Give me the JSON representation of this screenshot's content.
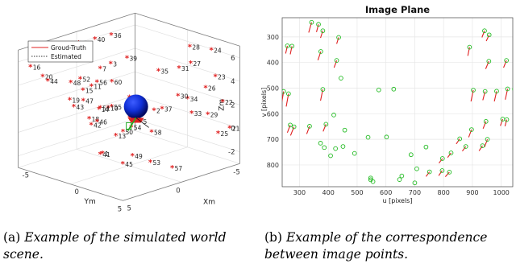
{
  "chart_data": [
    {
      "type": "scatter",
      "projection": "3d",
      "title": "",
      "xlabel": "Xm",
      "ylabel": "Ym",
      "zlabel": "Zm",
      "xlim": [
        -5,
        5
      ],
      "ylim": [
        -5,
        5
      ],
      "zlim": [
        -3,
        7
      ],
      "x_ticks": [
        "-5",
        "0",
        "5"
      ],
      "y_ticks": [
        "-5",
        "0",
        "5"
      ],
      "z_ticks": [
        "-2",
        "0",
        "2",
        "4",
        "6"
      ],
      "grid": true,
      "legend": {
        "position": "top-left",
        "entries": [
          {
            "label": "Groud-Truth",
            "color": "#e02020",
            "style": "solid"
          },
          {
            "label": "Estimated",
            "color": "#333333",
            "style": "dotted"
          }
        ]
      },
      "points": [
        {
          "label": "36",
          "x": -2.7,
          "y": -4.7,
          "z": 5.9
        },
        {
          "label": "40",
          "x": -1.3,
          "y": -4.7,
          "z": 6.0
        },
        {
          "label": "4",
          "x": 0.1,
          "y": -4.7,
          "z": 6.1
        },
        {
          "label": "8",
          "x": 1.7,
          "y": -4.6,
          "z": 6.0
        },
        {
          "label": "12",
          "x": 3.1,
          "y": -4.6,
          "z": 5.8
        },
        {
          "label": "16",
          "x": 4.4,
          "y": -4.5,
          "z": 5.5
        },
        {
          "label": "20",
          "x": 4.7,
          "y": -3.0,
          "z": 5.2
        },
        {
          "label": "44",
          "x": 4.8,
          "y": -2.4,
          "z": 5.0
        },
        {
          "label": "24",
          "x": -4.8,
          "y": 2.5,
          "z": 6.0
        },
        {
          "label": "28",
          "x": -4.3,
          "y": 1.0,
          "z": 6.0
        },
        {
          "label": "39",
          "x": -0.9,
          "y": -1.2,
          "z": 5.5
        },
        {
          "label": "3",
          "x": 0.4,
          "y": -1.3,
          "z": 5.4
        },
        {
          "label": "7",
          "x": 1.3,
          "y": -1.3,
          "z": 5.3
        },
        {
          "label": "52",
          "x": 3.1,
          "y": -1.2,
          "z": 5.0
        },
        {
          "label": "48",
          "x": 4.0,
          "y": -1.1,
          "z": 5.0
        },
        {
          "label": "27",
          "x": -4.2,
          "y": 1.2,
          "z": 4.7
        },
        {
          "label": "31",
          "x": -3.2,
          "y": 1.2,
          "z": 4.6
        },
        {
          "label": "35",
          "x": -1.8,
          "y": 0.8,
          "z": 4.7
        },
        {
          "label": "60",
          "x": 1.2,
          "y": -0.3,
          "z": 4.4
        },
        {
          "label": "56",
          "x": 2.2,
          "y": -0.6,
          "z": 4.6
        },
        {
          "label": "11",
          "x": 2.5,
          "y": -0.8,
          "z": 4.3
        },
        {
          "label": "15",
          "x": 3.4,
          "y": -0.6,
          "z": 4.3
        },
        {
          "label": "19",
          "x": 4.8,
          "y": -0.3,
          "z": 4.0
        },
        {
          "label": "47",
          "x": 4.0,
          "y": 0.1,
          "z": 3.8
        },
        {
          "label": "43",
          "x": 4.9,
          "y": 0.2,
          "z": 3.6
        },
        {
          "label": "23",
          "x": -4.7,
          "y": 3.0,
          "z": 3.9
        },
        {
          "label": "34",
          "x": -2.6,
          "y": 2.7,
          "z": 2.6
        },
        {
          "label": "26",
          "x": -4.4,
          "y": 2.4,
          "z": 2.9
        },
        {
          "label": "30",
          "x": -2.4,
          "y": 2.0,
          "z": 2.7
        },
        {
          "label": "6",
          "x": 0.5,
          "y": 0.6,
          "z": 3.1
        },
        {
          "label": "59",
          "x": 0.9,
          "y": 1.1,
          "z": 2.7
        },
        {
          "label": "55",
          "x": 2.2,
          "y": 0.8,
          "z": 2.9
        },
        {
          "label": "10",
          "x": 2.5,
          "y": 0.8,
          "z": 2.9
        },
        {
          "label": "51",
          "x": 3.0,
          "y": 0.6,
          "z": 3.0
        },
        {
          "label": "14",
          "x": 3.2,
          "y": 0.7,
          "z": 3.0
        },
        {
          "label": "18",
          "x": 4.3,
          "y": 1.0,
          "z": 2.6
        },
        {
          "label": "46",
          "x": 3.9,
          "y": 1.3,
          "z": 2.3
        },
        {
          "label": "42",
          "x": 4.4,
          "y": 1.3,
          "z": 2.2
        },
        {
          "label": "22",
          "x": -4.6,
          "y": 3.8,
          "z": 2.0
        },
        {
          "label": "33",
          "x": -2.4,
          "y": 3.3,
          "z": 1.6
        },
        {
          "label": "29",
          "x": -3.6,
          "y": 3.5,
          "z": 1.2
        },
        {
          "label": "37",
          "x": -1.3,
          "y": 1.7,
          "z": 1.9
        },
        {
          "label": "2",
          "x": -0.7,
          "y": 1.6,
          "z": 1.9
        },
        {
          "label": "9",
          "x": 1.2,
          "y": 1.4,
          "z": 1.8
        },
        {
          "label": "5",
          "x": 0.7,
          "y": 1.9,
          "z": 1.5
        },
        {
          "label": "54",
          "x": 1.6,
          "y": 2.0,
          "z": 1.3
        },
        {
          "label": "50",
          "x": 2.4,
          "y": 2.1,
          "z": 1.2
        },
        {
          "label": "13",
          "x": 3.1,
          "y": 2.2,
          "z": 1.1
        },
        {
          "label": "58",
          "x": 0.4,
          "y": 2.6,
          "z": 0.7
        },
        {
          "label": "1",
          "x": 4.6,
          "y": 2.6,
          "z": 0.2
        },
        {
          "label": "41",
          "x": 4.8,
          "y": 2.6,
          "z": 0.2
        },
        {
          "label": "21",
          "x": -4.4,
          "y": 4.7,
          "z": 0.1
        },
        {
          "label": "25",
          "x": -3.5,
          "y": 4.6,
          "z": -0.1
        },
        {
          "label": "49",
          "x": 2.4,
          "y": 3.0,
          "z": -0.6
        },
        {
          "label": "45",
          "x": 3.4,
          "y": 3.2,
          "z": -0.9
        },
        {
          "label": "53",
          "x": 1.4,
          "y": 3.6,
          "z": -1.3
        },
        {
          "label": "57",
          "x": -0.2,
          "y": 3.9,
          "z": -2.2
        }
      ]
    },
    {
      "type": "scatter",
      "title": "Image Plane",
      "xlabel": "u [pixels]",
      "ylabel": "v [pixels]",
      "xlim": [
        240,
        1040
      ],
      "ylim": [
        885,
        225
      ],
      "x_ticks": [
        "300",
        "400",
        "500",
        "600",
        "700",
        "800",
        "900",
        "1000"
      ],
      "y_ticks": [
        "300",
        "400",
        "500",
        "600",
        "700",
        "800"
      ],
      "grid": true,
      "series": [
        {
          "name": "",
          "color": "#22bb22",
          "marker": "circle-open",
          "points": [
            [
              342,
              243
            ],
            [
              366,
              251
            ],
            [
              381,
              276
            ],
            [
              258,
              335
            ],
            [
              274,
              336
            ],
            [
              374,
              357
            ],
            [
              436,
              302
            ],
            [
              429,
              392
            ],
            [
              890,
              340
            ],
            [
              942,
              276
            ],
            [
              958,
              292
            ],
            [
              957,
              395
            ],
            [
              1018,
              392
            ],
            [
              245,
              513
            ],
            [
              262,
              522
            ],
            [
              381,
              505
            ],
            [
              444,
              461
            ],
            [
              575,
              507
            ],
            [
              627,
              504
            ],
            [
              903,
              508
            ],
            [
              944,
              513
            ],
            [
              984,
              512
            ],
            [
              1022,
              503
            ],
            [
              1046,
              504
            ],
            [
              268,
              644
            ],
            [
              281,
              651
            ],
            [
              335,
              649
            ],
            [
              392,
              641
            ],
            [
              419,
              605
            ],
            [
              457,
              664
            ],
            [
              538,
              692
            ],
            [
              602,
              691
            ],
            [
              947,
              630
            ],
            [
              1005,
              621
            ],
            [
              1019,
              623
            ],
            [
              897,
              662
            ],
            [
              373,
              715
            ],
            [
              386,
              732
            ],
            [
              425,
              736
            ],
            [
              451,
              728
            ],
            [
              408,
              764
            ],
            [
              491,
              755
            ],
            [
              687,
              760
            ],
            [
              739,
              730
            ],
            [
              856,
              698
            ],
            [
              877,
              728
            ],
            [
              952,
              700
            ],
            [
              935,
              725
            ],
            [
              826,
              753
            ],
            [
              796,
              775
            ],
            [
              751,
              827
            ],
            [
              795,
              822
            ],
            [
              820,
              828
            ],
            [
              707,
              815
            ],
            [
              655,
              843
            ],
            [
              647,
              857
            ],
            [
              547,
              851
            ],
            [
              547,
              858
            ],
            [
              555,
              865
            ],
            [
              700,
              870
            ]
          ]
        },
        {
          "name": "",
          "color": "#e02020",
          "marker": "arrow",
          "vectors": [
            [
              342,
              243,
              -10,
              40
            ],
            [
              366,
              251,
              -7,
              30
            ],
            [
              381,
              276,
              -8,
              28
            ],
            [
              258,
              335,
              -6,
              30
            ],
            [
              274,
              336,
              -6,
              32
            ],
            [
              374,
              357,
              -10,
              34
            ],
            [
              436,
              302,
              -7,
              25
            ],
            [
              429,
              392,
              -9,
              28
            ],
            [
              890,
              340,
              -6,
              34
            ],
            [
              942,
              276,
              -9,
              26
            ],
            [
              958,
              292,
              -10,
              24
            ],
            [
              957,
              395,
              -11,
              30
            ],
            [
              1018,
              392,
              -10,
              28
            ],
            [
              245,
              513,
              -6,
              40
            ],
            [
              262,
              522,
              -8,
              50
            ],
            [
              381,
              505,
              -8,
              44
            ],
            [
              903,
              508,
              -8,
              44
            ],
            [
              944,
              513,
              -8,
              34
            ],
            [
              984,
              512,
              -8,
              40
            ],
            [
              1022,
              503,
              -8,
              42
            ],
            [
              268,
              644,
              -10,
              30
            ],
            [
              281,
              651,
              -12,
              34
            ],
            [
              335,
              649,
              -10,
              30
            ],
            [
              392,
              641,
              -10,
              28
            ],
            [
              947,
              630,
              -10,
              28
            ],
            [
              1005,
              621,
              -8,
              26
            ],
            [
              1019,
              623,
              -6,
              26
            ],
            [
              897,
              662,
              -10,
              30
            ],
            [
              877,
              728,
              -12,
              18
            ],
            [
              952,
              700,
              -10,
              30
            ],
            [
              935,
              725,
              -12,
              20
            ],
            [
              856,
              698,
              -12,
              20
            ],
            [
              826,
              753,
              -12,
              18
            ],
            [
              796,
              775,
              -12,
              18
            ],
            [
              795,
              822,
              -12,
              20
            ],
            [
              820,
              828,
              -14,
              18
            ],
            [
              751,
              827,
              -12,
              18
            ]
          ]
        }
      ]
    }
  ],
  "captions": [
    {
      "label": "(a)",
      "text": "Example of the simulated world scene."
    },
    {
      "label": "(b)",
      "text": "Example of the correspondence between image points."
    }
  ]
}
